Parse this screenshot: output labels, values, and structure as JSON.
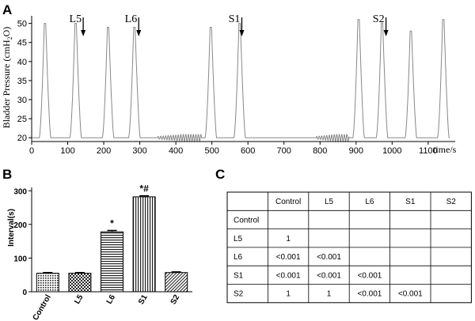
{
  "panel_labels": {
    "a": "A",
    "b": "B",
    "c": "C"
  },
  "chart_data": [
    {
      "type": "line",
      "panel": "A",
      "ylabel": "Bladder Pressure (cmH2O)",
      "ylabel_parts": {
        "main": "Bladder Pressure (cmH",
        "sub": "2",
        "tail": "O)"
      },
      "xlabel": "time/s",
      "xlim": [
        0,
        1175
      ],
      "ylim": [
        19,
        52
      ],
      "x_ticks": [
        0,
        100,
        200,
        300,
        400,
        500,
        600,
        700,
        800,
        900,
        1000,
        1100
      ],
      "y_ticks": [
        20,
        25,
        30,
        35,
        40,
        45,
        50
      ],
      "line_color": "#888888",
      "baseline": 20,
      "peaks": [
        {
          "x": 35,
          "y": 50
        },
        {
          "x": 120,
          "y": 50
        },
        {
          "x": 210,
          "y": 49
        },
        {
          "x": 283,
          "y": 49
        },
        {
          "x": 495,
          "y": 49
        },
        {
          "x": 575,
          "y": 50
        },
        {
          "x": 905,
          "y": 51
        },
        {
          "x": 970,
          "y": 50
        },
        {
          "x": 1050,
          "y": 48
        },
        {
          "x": 1140,
          "y": 51
        }
      ],
      "oscillation_ranges": [
        [
          350,
          470
        ],
        [
          790,
          880
        ]
      ],
      "annotations": [
        {
          "label": "L5",
          "x": 143
        },
        {
          "label": "L6",
          "x": 297
        },
        {
          "label": "S1",
          "x": 583
        },
        {
          "label": "S2",
          "x": 983
        }
      ]
    },
    {
      "type": "bar",
      "panel": "B",
      "categories": [
        "Control",
        "L5",
        "L6",
        "S1",
        "S2"
      ],
      "values": [
        55,
        55,
        178,
        282,
        57
      ],
      "errors": [
        2,
        2,
        4,
        3,
        2
      ],
      "patterns": [
        "dots",
        "checker",
        "hlines",
        "vlines",
        "diag"
      ],
      "significance": [
        "",
        "",
        "*",
        "*#",
        ""
      ],
      "ylabel": "Interval(s)",
      "ylim": [
        0,
        310
      ],
      "y_ticks": [
        0,
        100,
        200,
        300
      ]
    }
  ],
  "table": {
    "header": [
      "",
      "Control",
      "L5",
      "L6",
      "S1",
      "S2"
    ],
    "rows": [
      [
        "Control",
        "",
        "",
        "",
        "",
        ""
      ],
      [
        "L5",
        "1",
        "",
        "",
        "",
        ""
      ],
      [
        "L6",
        "<0.001",
        "<0.001",
        "",
        "",
        ""
      ],
      [
        "S1",
        "<0.001",
        "<0.001",
        "<0.001",
        "",
        ""
      ],
      [
        "S2",
        "1",
        "1",
        "<0.001",
        "<0.001",
        ""
      ]
    ]
  }
}
